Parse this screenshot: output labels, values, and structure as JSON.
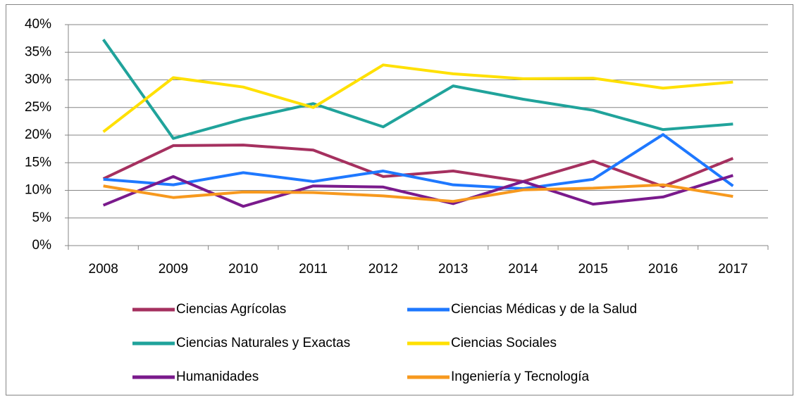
{
  "chart_data": {
    "type": "line",
    "categories": [
      "2008",
      "2009",
      "2010",
      "2011",
      "2012",
      "2013",
      "2014",
      "2015",
      "2016",
      "2017"
    ],
    "series": [
      {
        "name": "Ciencias Agrícolas",
        "color": "#a5305f",
        "values": [
          12.1,
          18.1,
          18.2,
          17.3,
          12.5,
          13.5,
          11.6,
          15.3,
          10.7,
          15.8
        ]
      },
      {
        "name": "Ciencias Médicas y de la Salud",
        "color": "#1e78ff",
        "values": [
          12.0,
          11.0,
          13.2,
          11.6,
          13.5,
          11.0,
          10.3,
          12.0,
          20.1,
          10.8
        ]
      },
      {
        "name": "Ciencias Naturales y Exactas",
        "color": "#20a39b",
        "values": [
          37.3,
          19.4,
          22.9,
          25.7,
          21.5,
          28.9,
          26.5,
          24.5,
          21.0,
          22.0
        ]
      },
      {
        "name": "Ciencias Sociales",
        "color": "#ffe000",
        "values": [
          20.6,
          30.4,
          28.7,
          25.0,
          32.7,
          31.1,
          30.2,
          30.3,
          28.5,
          29.6
        ]
      },
      {
        "name": "Humanidades",
        "color": "#7a1a8c",
        "values": [
          7.3,
          12.5,
          7.1,
          10.8,
          10.6,
          7.6,
          11.6,
          7.5,
          8.8,
          12.7
        ]
      },
      {
        "name": "Ingeniería y Tecnología",
        "color": "#f7991e",
        "values": [
          10.8,
          8.7,
          9.7,
          9.6,
          9.0,
          8.0,
          10.1,
          10.4,
          11.0,
          8.9
        ]
      }
    ],
    "ylim": [
      0,
      40
    ],
    "yticks": [
      {
        "value": 0,
        "label": "0%"
      },
      {
        "value": 5,
        "label": "5%"
      },
      {
        "value": 10,
        "label": "10%"
      },
      {
        "value": 15,
        "label": "15%"
      },
      {
        "value": 20,
        "label": "20%"
      },
      {
        "value": 25,
        "label": "25%"
      },
      {
        "value": 30,
        "label": "30%"
      },
      {
        "value": 35,
        "label": "35%"
      },
      {
        "value": 40,
        "label": "40%"
      }
    ],
    "grid": true
  }
}
